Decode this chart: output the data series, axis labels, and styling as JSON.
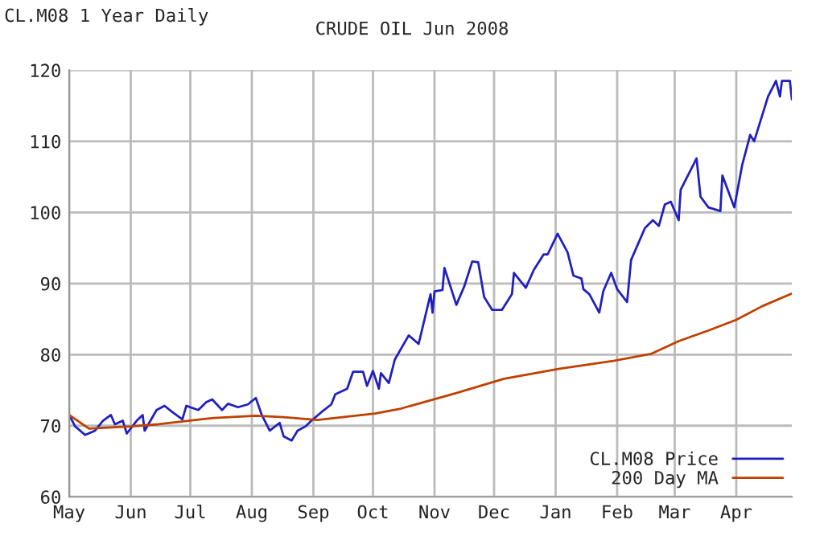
{
  "chart_data": {
    "type": "line",
    "title": "CRUDE OIL Jun 2008",
    "annotations": [
      "CL.M08 1 Year Daily"
    ],
    "xlim": [
      "2007-05-01",
      "2008-04-29"
    ],
    "ylim": [
      60,
      120
    ],
    "yticks": [
      60,
      70,
      80,
      90,
      100,
      110,
      120
    ],
    "xticks": [
      {
        "value": "2007-05-01",
        "label": "May"
      },
      {
        "value": "2007-06-01",
        "label": "Jun"
      },
      {
        "value": "2007-07-01",
        "label": "Jul"
      },
      {
        "value": "2007-08-01",
        "label": "Aug"
      },
      {
        "value": "2007-09-01",
        "label": "Sep"
      },
      {
        "value": "2007-10-01",
        "label": "Oct"
      },
      {
        "value": "2007-11-01",
        "label": "Nov"
      },
      {
        "value": "2007-12-01",
        "label": "Dec"
      },
      {
        "value": "2008-01-01",
        "label": "Jan"
      },
      {
        "value": "2008-02-01",
        "label": "Feb"
      },
      {
        "value": "2008-03-01",
        "label": "Mar"
      },
      {
        "value": "2008-04-01",
        "label": "Apr"
      }
    ],
    "grid": true,
    "legend": "bottom right",
    "line_style": "solid",
    "marker": "none",
    "series": [
      {
        "name": "CL.M08 Price",
        "color": "#2020c0",
        "x": [
          "2007-05-01",
          "2007-05-04",
          "2007-05-09",
          "2007-05-14",
          "2007-05-18",
          "2007-05-22",
          "2007-05-24",
          "2007-05-28",
          "2007-05-30",
          "2007-06-04",
          "2007-06-07",
          "2007-06-08",
          "2007-06-14",
          "2007-06-18",
          "2007-06-22",
          "2007-06-27",
          "2007-06-29",
          "2007-07-05",
          "2007-07-09",
          "2007-07-12",
          "2007-07-17",
          "2007-07-20",
          "2007-07-25",
          "2007-07-30",
          "2007-08-03",
          "2007-08-06",
          "2007-08-10",
          "2007-08-15",
          "2007-08-17",
          "2007-08-21",
          "2007-08-24",
          "2007-08-28",
          "2007-08-31",
          "2007-09-05",
          "2007-09-10",
          "2007-09-12",
          "2007-09-18",
          "2007-09-21",
          "2007-09-26",
          "2007-09-28",
          "2007-10-01",
          "2007-10-04",
          "2007-10-05",
          "2007-10-09",
          "2007-10-12",
          "2007-10-19",
          "2007-10-24",
          "2007-10-30",
          "2007-10-31",
          "2007-11-01",
          "2007-11-05",
          "2007-11-06",
          "2007-11-12",
          "2007-11-16",
          "2007-11-20",
          "2007-11-23",
          "2007-11-26",
          "2007-11-30",
          "2007-12-05",
          "2007-12-10",
          "2007-12-11",
          "2007-12-17",
          "2007-12-21",
          "2007-12-26",
          "2007-12-28",
          "2008-01-02",
          "2008-01-07",
          "2008-01-10",
          "2008-01-14",
          "2008-01-15",
          "2008-01-18",
          "2008-01-23",
          "2008-01-25",
          "2008-01-29",
          "2008-02-01",
          "2008-02-06",
          "2008-02-08",
          "2008-02-15",
          "2008-02-19",
          "2008-02-22",
          "2008-02-25",
          "2008-02-28",
          "2008-03-03",
          "2008-03-04",
          "2008-03-12",
          "2008-03-14",
          "2008-03-18",
          "2008-03-24",
          "2008-03-25",
          "2008-03-31",
          "2008-04-04",
          "2008-04-08",
          "2008-04-10",
          "2008-04-17",
          "2008-04-21",
          "2008-04-23",
          "2008-04-24",
          "2008-04-28",
          "2008-04-29"
        ],
        "values": [
          71.5,
          69.9,
          68.7,
          69.3,
          70.7,
          71.5,
          70.2,
          70.7,
          68.9,
          70.7,
          71.5,
          69.3,
          72.2,
          72.8,
          71.9,
          70.9,
          72.8,
          72.2,
          73.3,
          73.7,
          72.2,
          73.1,
          72.6,
          73,
          73.9,
          71.5,
          69.3,
          70.4,
          68.5,
          67.9,
          69.3,
          69.9,
          70.7,
          71.9,
          73,
          74.4,
          75.2,
          77.6,
          77.6,
          75.6,
          77.7,
          75.2,
          77.4,
          76,
          79.3,
          82.7,
          81.5,
          88.5,
          85.9,
          88.9,
          89.1,
          92.2,
          87,
          89.6,
          93.1,
          93,
          88.1,
          86.3,
          86.3,
          88.5,
          91.5,
          89.4,
          91.9,
          94.1,
          94.1,
          97,
          94.4,
          91.1,
          90.7,
          89.2,
          88.5,
          85.9,
          88.9,
          91.5,
          89.2,
          87.4,
          93.3,
          97.8,
          98.9,
          98.1,
          101.1,
          101.5,
          98.9,
          103.2,
          107.6,
          102.2,
          100.7,
          100.2,
          105.2,
          100.7,
          106.7,
          110.9,
          110,
          116.3,
          118.5,
          116.3,
          118.5,
          118.5,
          115.9
        ]
      },
      {
        "name": "200 Day MA",
        "color": "#c04000",
        "x": [
          "2007-05-01",
          "2007-05-11",
          "2007-06-01",
          "2007-06-15",
          "2007-07-13",
          "2007-08-03",
          "2007-08-17",
          "2007-09-03",
          "2007-10-02",
          "2007-10-15",
          "2007-11-12",
          "2007-12-06",
          "2008-01-03",
          "2008-01-30",
          "2008-02-18",
          "2008-03-03",
          "2008-03-18",
          "2008-04-01",
          "2008-04-14",
          "2008-04-29"
        ],
        "values": [
          71.5,
          69.6,
          69.9,
          70.2,
          71.1,
          71.4,
          71.2,
          70.8,
          71.7,
          72.4,
          74.6,
          76.6,
          78,
          79.1,
          80.1,
          81.9,
          83.4,
          84.9,
          86.8,
          88.6
        ]
      }
    ]
  }
}
